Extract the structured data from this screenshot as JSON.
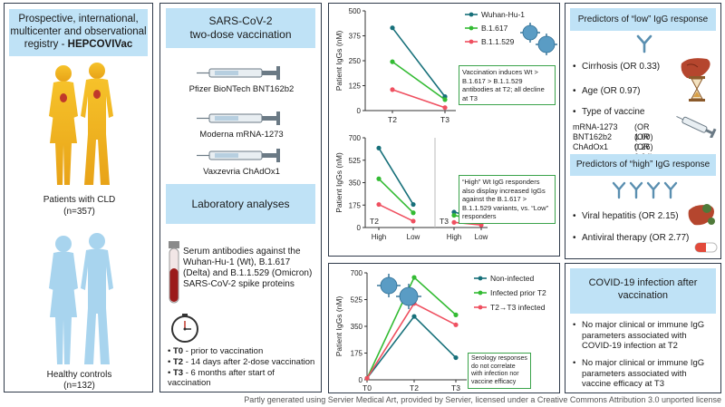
{
  "registry": {
    "line1": "Prospective, international,",
    "line2": "multicenter and observational",
    "line3_prefix": "registry - ",
    "line3_bold": "HEPCOVIVac",
    "patients_label": "Patients with CLD",
    "patients_n": "(n=357)",
    "controls_label": "Healthy controls",
    "controls_n": "(n=132)"
  },
  "vaccination": {
    "title_line1": "SARS-CoV-2",
    "title_line2": "two-dose vaccination",
    "vaccines": [
      "Pfizer BioNTech BNT162b2",
      "Moderna mRNA-1273",
      "Vaxzevria ChAdOx1"
    ]
  },
  "lab": {
    "title": "Laboratory analyses",
    "serum_text": "Serum antibodies against the Wuhan-Hu-1 (Wt), B.1.617 (Delta) and B.1.1.529 (Omicron) SARS-CoV-2 spike proteins",
    "timeline": [
      {
        "label": "T0",
        "text": " - prior to vaccination"
      },
      {
        "label": "T2",
        "text": " - 14 days after 2-dose vaccination"
      },
      {
        "label": "T3",
        "text": " - 6 months after start of vaccination"
      }
    ]
  },
  "chart_data": [
    {
      "type": "line",
      "title": "",
      "ylabel": "Patient IgGs (nM)",
      "categories": [
        "T2",
        "T3"
      ],
      "ylim": [
        0,
        500
      ],
      "yticks": [
        "500",
        "375",
        "250",
        "125",
        "0"
      ],
      "series": [
        {
          "name": "Wuhan-Hu-1",
          "color": "#17707a",
          "values": [
            415,
            70
          ]
        },
        {
          "name": "B.1.617",
          "color": "#33bb33",
          "values": [
            245,
            55
          ]
        },
        {
          "name": "B.1.1.529",
          "color": "#ef5060",
          "values": [
            105,
            15
          ]
        }
      ],
      "annotation": "Vaccination induces Wt > B.1.617 > B.1.1.529 antibodies at T2; all decline at T3"
    },
    {
      "type": "line",
      "title": "",
      "ylabel": "Patient IgGs (nM)",
      "groups": [
        "T2",
        "T3"
      ],
      "categories": [
        "High",
        "Low"
      ],
      "ylim": [
        0,
        700
      ],
      "yticks": [
        "700",
        "525",
        "350",
        "175",
        "0"
      ],
      "series": [
        {
          "name": "Wuhan-Hu-1",
          "color": "#17707a",
          "t2": [
            620,
            180
          ],
          "t3": [
            120,
            70
          ]
        },
        {
          "name": "B.1.617",
          "color": "#33bb33",
          "t2": [
            380,
            115
          ],
          "t3": [
            95,
            55
          ]
        },
        {
          "name": "B.1.1.529",
          "color": "#ef5060",
          "t2": [
            180,
            50
          ],
          "t3": [
            40,
            20
          ]
        }
      ],
      "annotation": "“High” Wt IgG responders also display increased IgGs against the B.1.617 > B.1.1.529 variants, vs. “Low” responders"
    },
    {
      "type": "line",
      "title": "",
      "ylabel": "Patient IgGs (nM)",
      "categories": [
        "T0",
        "T2",
        "T3"
      ],
      "ylim": [
        0,
        700
      ],
      "yticks": [
        "700",
        "525",
        "350",
        "175",
        "0"
      ],
      "series": [
        {
          "name": "Non-infected",
          "color": "#17707a",
          "values": [
            10,
            415,
            145
          ]
        },
        {
          "name": "Infected prior T2",
          "color": "#33bb33",
          "values": [
            10,
            670,
            425
          ]
        },
        {
          "name": "T2→T3 infected",
          "color": "#ef5060",
          "values": [
            10,
            500,
            360
          ]
        }
      ],
      "annotation": "Serology responses do not correlate with infection nor vaccine efficacy"
    }
  ],
  "predictors_low": {
    "title": "Predictors of “low” IgG response",
    "items": [
      "Cirrhosis (OR 0.33)",
      "Age (OR 0.97)",
      "Type of vaccine"
    ],
    "vaccine_or": [
      {
        "name": "mRNA-1273",
        "or": "(OR 1.00)"
      },
      {
        "name": "BNT162b2",
        "or": "(OR 0.26)"
      },
      {
        "name": "ChAdOx1",
        "or": "(OR 0.04)"
      }
    ]
  },
  "predictors_high": {
    "title": "Predictors of “high” IgG response",
    "items": [
      "Viral hepatitis (OR 2.15)",
      "Antiviral therapy (OR 2.77)"
    ]
  },
  "covid": {
    "title": "COVID-19 infection after vaccination",
    "items": [
      "No major clinical or immune IgG parameters associated with COVID-19 infection at T2",
      "No major clinical or immune IgG parameters associated with vaccine efficacy at T3"
    ]
  },
  "footer": "Partly generated using Servier Medical Art, provided by Servier, licensed under a Creative Commons Attribution 3.0 unported license",
  "colors": {
    "header_bg": "#bfe2f6",
    "wt": "#17707a",
    "delta": "#33bb33",
    "omicron": "#ef5060"
  }
}
